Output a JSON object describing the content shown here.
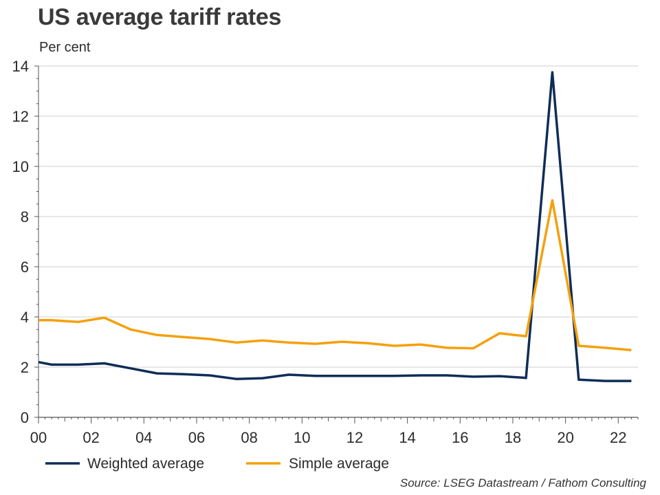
{
  "chart_data": {
    "type": "line",
    "title": "US average tariff rates",
    "ylabel": "Per cent",
    "xlabel": "",
    "xlim": [
      2000,
      2022.75
    ],
    "ylim": [
      0,
      14
    ],
    "grid": true,
    "x_tick_labels": [
      "00",
      "02",
      "04",
      "06",
      "08",
      "10",
      "12",
      "14",
      "16",
      "18",
      "20",
      "22"
    ],
    "y_tick_labels": [
      "0",
      "2",
      "4",
      "6",
      "8",
      "10",
      "12",
      "14"
    ],
    "series": [
      {
        "name": "Weighted average",
        "color": "#0f2d57",
        "x": [
          2000,
          2000.5,
          2001.5,
          2002.5,
          2003.5,
          2004.5,
          2005.5,
          2006.5,
          2007.5,
          2008.5,
          2009.5,
          2010.5,
          2011.5,
          2012.5,
          2013.5,
          2014.5,
          2015.5,
          2016.5,
          2017.5,
          2018.5,
          2019.5,
          2020.5,
          2021.5,
          2022.5
        ],
        "values": [
          2.2,
          2.1,
          2.1,
          2.15,
          1.95,
          1.75,
          1.72,
          1.67,
          1.53,
          1.56,
          1.7,
          1.65,
          1.65,
          1.65,
          1.65,
          1.67,
          1.67,
          1.62,
          1.64,
          1.57,
          13.75,
          1.5,
          1.45,
          1.45
        ]
      },
      {
        "name": "Simple average",
        "color": "#f5a00c",
        "x": [
          2000,
          2000.5,
          2001.5,
          2002.5,
          2003.5,
          2004.5,
          2005.5,
          2006.5,
          2007.5,
          2008.5,
          2009.5,
          2010.5,
          2011.5,
          2012.5,
          2013.5,
          2014.5,
          2015.5,
          2016.5,
          2017.5,
          2018.5,
          2019.5,
          2020.5,
          2021.5,
          2022.5
        ],
        "values": [
          3.87,
          3.87,
          3.8,
          3.97,
          3.5,
          3.28,
          3.2,
          3.12,
          2.98,
          3.06,
          2.98,
          2.93,
          3.01,
          2.95,
          2.85,
          2.9,
          2.77,
          2.75,
          3.35,
          3.23,
          8.65,
          2.85,
          2.77,
          2.68
        ]
      }
    ],
    "legend": "bottom",
    "source": "Source: LSEG Datastream / Fathom Consulting"
  }
}
